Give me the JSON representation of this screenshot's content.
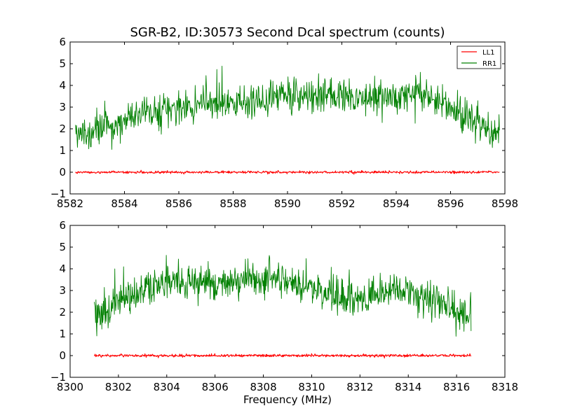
{
  "chart_data": [
    {
      "type": "line",
      "title": "SGR-B2, ID:30573 Second Dcal spectrum (counts)",
      "xlabel": "",
      "ylabel": "",
      "xlim": [
        8582,
        8598
      ],
      "ylim": [
        -1,
        6
      ],
      "xticks": [
        "8582",
        "8584",
        "8586",
        "8588",
        "8590",
        "8592",
        "8594",
        "8596",
        "8598"
      ],
      "yticks": [
        "−1",
        "0",
        "1",
        "2",
        "3",
        "4",
        "5",
        "6"
      ],
      "legend": {
        "placement": "top-right",
        "entries": [
          "LL1",
          "RR1"
        ]
      },
      "grid": false,
      "series": [
        {
          "name": "LL1",
          "color": "#ff0000",
          "x_range": [
            8582.2,
            8597.8
          ],
          "x": [
            8582.2,
            8586,
            8590,
            8594,
            8597.8
          ],
          "values": [
            0.0,
            0.0,
            0.0,
            0.0,
            0.0
          ],
          "noise": 0.03
        },
        {
          "name": "RR1",
          "color": "#008000",
          "x_range": [
            8582.2,
            8597.8
          ],
          "x": [
            8582.2,
            8583,
            8584,
            8585,
            8586,
            8587,
            8588,
            8589,
            8590,
            8591,
            8592,
            8593,
            8594,
            8595,
            8596,
            8596.6,
            8597.2,
            8597.8
          ],
          "values": [
            1.6,
            1.9,
            2.4,
            2.7,
            3.0,
            3.1,
            3.2,
            3.4,
            3.5,
            3.6,
            3.5,
            3.4,
            3.5,
            3.6,
            3.0,
            2.4,
            2.0,
            1.8
          ],
          "noise": 0.4
        }
      ]
    },
    {
      "type": "line",
      "title": "",
      "xlabel": "Frequency (MHz)",
      "ylabel": "",
      "xlim": [
        8300,
        8318
      ],
      "ylim": [
        -1,
        6
      ],
      "xticks": [
        "8300",
        "8302",
        "8304",
        "8306",
        "8308",
        "8310",
        "8312",
        "8314",
        "8316",
        "8318"
      ],
      "yticks": [
        "−1",
        "0",
        "1",
        "2",
        "3",
        "4",
        "5",
        "6"
      ],
      "grid": false,
      "series": [
        {
          "name": "LL1",
          "color": "#ff0000",
          "x_range": [
            8301.0,
            8316.6
          ],
          "x": [
            8301.0,
            8305,
            8309,
            8313,
            8316.6
          ],
          "values": [
            0.0,
            0.0,
            0.0,
            0.0,
            0.0
          ],
          "noise": 0.03
        },
        {
          "name": "RR1",
          "color": "#008000",
          "x_range": [
            8301.0,
            8316.6
          ],
          "x": [
            8301.0,
            8302,
            8303,
            8304,
            8305,
            8306,
            8307,
            8308,
            8309,
            8310,
            8311,
            8312,
            8313,
            8314,
            8315,
            8315.8,
            8316.6
          ],
          "values": [
            1.8,
            2.4,
            3.0,
            3.5,
            3.4,
            3.3,
            3.4,
            3.6,
            3.5,
            3.1,
            2.8,
            2.6,
            2.8,
            2.9,
            2.6,
            2.1,
            1.8
          ],
          "noise": 0.4
        }
      ]
    }
  ]
}
